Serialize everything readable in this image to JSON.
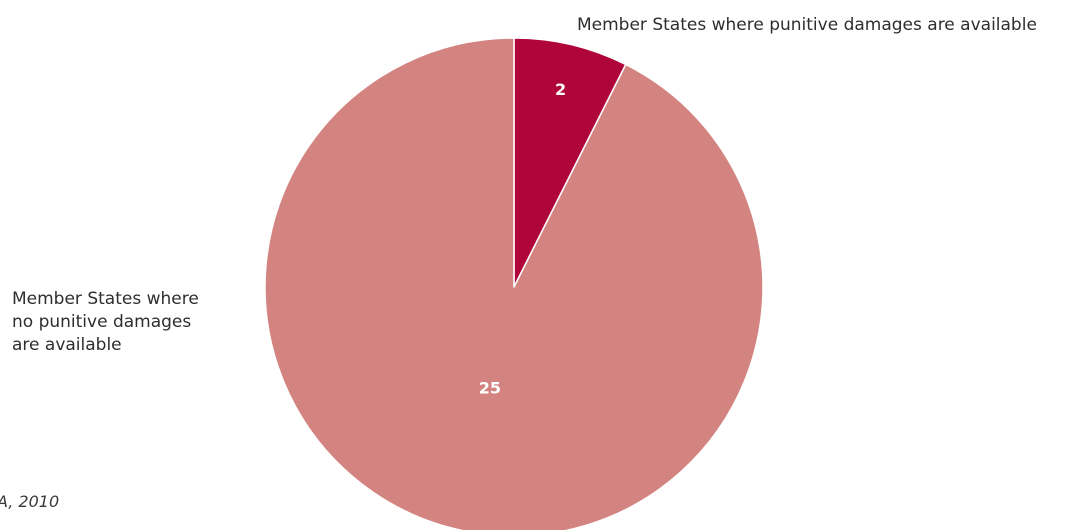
{
  "chart_data": {
    "type": "pie",
    "slices": [
      {
        "label": "Member States where punitive damages are available",
        "value": 2,
        "color": "#b0053a"
      },
      {
        "label": "Member States where no punitive damages are available",
        "value": 25,
        "color": "#d48480"
      }
    ],
    "start_angle_deg": 0,
    "direction": "clockwise"
  },
  "labels": {
    "available": "Member States where punitive damages are available",
    "not_available": "Member States where no punitive damages are available"
  },
  "source_fragment": "A, 2010"
}
